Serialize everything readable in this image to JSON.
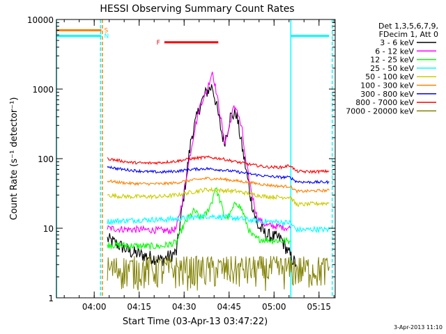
{
  "chart_data": {
    "type": "line",
    "title": "HESSI Observing Summary Count Rates",
    "xlabel": "Start Time (03-Apr-13 03:47:22)",
    "ylabel": "Count Rate (s⁻¹ detector⁻¹)",
    "x_unit": "minutes since 03:47:22",
    "xlim": [
      0,
      93
    ],
    "ylim": [
      1,
      10000
    ],
    "yscale": "log",
    "x_ticks": [
      {
        "label": "04:00",
        "x": 12.6
      },
      {
        "label": "04:15",
        "x": 27.6
      },
      {
        "label": "04:30",
        "x": 42.6
      },
      {
        "label": "04:45",
        "x": 57.6
      },
      {
        "label": "05:00",
        "x": 72.6
      },
      {
        "label": "05:15",
        "x": 87.6
      }
    ],
    "y_ticks": [
      {
        "label": "1",
        "v": 1
      },
      {
        "label": "10",
        "v": 10
      },
      {
        "label": "100",
        "v": 100
      },
      {
        "label": "1000",
        "v": 1000
      },
      {
        "label": "10000",
        "v": 10000
      }
    ],
    "legend_header": [
      "Det 1,3,5,6,7,9,",
      "FDecim 1, Att 0"
    ],
    "legend_position": "right",
    "timestamp": "3-Apr-2013 11:10",
    "series": [
      {
        "name": "3 - 6 keV",
        "color": "#000000",
        "noise": 0.1,
        "x": [
          17,
          20,
          25,
          30,
          35,
          38,
          40,
          42,
          45,
          48,
          50,
          52,
          53,
          55,
          56,
          57,
          58,
          60,
          61,
          63,
          65,
          67,
          70,
          75,
          78,
          80
        ],
        "values": [
          7,
          6,
          4.5,
          4,
          3.5,
          4,
          4.5,
          20,
          200,
          600,
          900,
          1100,
          700,
          250,
          170,
          250,
          400,
          450,
          250,
          80,
          25,
          11,
          8,
          7,
          4,
          3
        ]
      },
      {
        "name": "6 - 12 keV",
        "color": "#ff00ff",
        "noise": 0.05,
        "x": [
          17,
          20,
          25,
          30,
          35,
          38,
          40,
          42,
          44,
          46,
          48,
          50,
          52,
          53,
          55,
          56,
          57,
          59,
          60,
          62,
          63,
          65,
          67,
          70,
          75,
          78
        ],
        "values": [
          10,
          9.8,
          9.6,
          9.5,
          9.3,
          9.2,
          9.8,
          25,
          80,
          250,
          600,
          900,
          1800,
          1100,
          350,
          170,
          220,
          520,
          550,
          250,
          100,
          35,
          14,
          11,
          10.5,
          10
        ]
      },
      {
        "name": "12 - 25 keV",
        "color": "#00ff00",
        "noise": 0.05,
        "x": [
          17,
          20,
          25,
          30,
          35,
          40,
          42,
          44,
          46,
          48,
          50,
          52,
          53,
          55,
          56,
          57,
          58,
          60,
          62,
          64,
          65,
          67,
          70,
          75,
          78
        ],
        "values": [
          5.8,
          5.7,
          5.6,
          5.5,
          5.5,
          6.2,
          10,
          14,
          18,
          14,
          16,
          25,
          40,
          22,
          15,
          14,
          16,
          24,
          18,
          10,
          8,
          7,
          6.8,
          6.6,
          6.5
        ]
      },
      {
        "name": "25 - 50 keV",
        "color": "#00ffff",
        "noise": 0.04,
        "x": [
          17,
          20,
          25,
          30,
          35,
          40,
          45,
          50,
          55,
          60,
          65,
          70,
          75,
          78,
          80,
          83,
          86,
          91
        ],
        "values": [
          12.5,
          12.7,
          13,
          13.3,
          13.3,
          13.6,
          14.2,
          15,
          14.5,
          14,
          13,
          12.5,
          12.2,
          12,
          9.5,
          9.5,
          9.7,
          9.5
        ]
      },
      {
        "name": "50 - 100 keV",
        "color": "#cccc00",
        "noise": 0.03,
        "x": [
          17,
          20,
          25,
          30,
          35,
          40,
          45,
          50,
          55,
          60,
          65,
          70,
          75,
          78,
          80,
          83,
          86,
          91
        ],
        "values": [
          30,
          29,
          28.5,
          28.5,
          28.5,
          30,
          33,
          36,
          35,
          34,
          31,
          28.5,
          28,
          28,
          22,
          22,
          22.5,
          23
        ]
      },
      {
        "name": "100 - 300 keV",
        "color": "#ff8000",
        "noise": 0.02,
        "x": [
          17,
          20,
          25,
          30,
          35,
          40,
          45,
          50,
          55,
          60,
          65,
          70,
          75,
          78,
          80,
          83,
          86,
          91
        ],
        "values": [
          48,
          46,
          44,
          43.5,
          43.5,
          45,
          49,
          52,
          51,
          48,
          45,
          42,
          40,
          40,
          34,
          34,
          34.5,
          35
        ]
      },
      {
        "name": "300 - 800 keV",
        "color": "#0000ff",
        "noise": 0.02,
        "x": [
          17,
          20,
          25,
          30,
          35,
          40,
          45,
          50,
          55,
          60,
          65,
          70,
          75,
          78,
          80,
          83,
          86,
          91
        ],
        "values": [
          78,
          72,
          68,
          65,
          64,
          66,
          70,
          72,
          69,
          65,
          60,
          56,
          54,
          54,
          47,
          46,
          46,
          46
        ]
      },
      {
        "name": "800 - 7000 keV",
        "color": "#ff0000",
        "noise": 0.02,
        "x": [
          17,
          20,
          25,
          30,
          35,
          40,
          45,
          50,
          55,
          60,
          65,
          70,
          75,
          78,
          80,
          83,
          86,
          91
        ],
        "values": [
          100,
          95,
          88,
          86,
          88,
          92,
          100,
          105,
          100,
          90,
          82,
          76,
          75,
          80,
          66,
          65,
          65,
          66
        ]
      },
      {
        "name": "7000 - 20000 keV",
        "color": "#808000",
        "noise": 0,
        "x": [
          17,
          20,
          25,
          30,
          35,
          40,
          45,
          50,
          55,
          60,
          65,
          70,
          75,
          78,
          80,
          83,
          86,
          91
        ],
        "values": [
          2.5,
          2.5,
          2.5,
          2.5,
          2.5,
          2.5,
          2.5,
          2.5,
          2.5,
          2.5,
          2.5,
          2.5,
          2.5,
          2.5,
          2.5,
          2.5,
          2.5,
          2.5
        ]
      }
    ],
    "annotations": [
      {
        "label": "S",
        "color": "#ff8000",
        "x": [
          0,
          15
        ],
        "value": 7000,
        "kind": "segment"
      },
      {
        "label": "N",
        "color": "#00ffff",
        "x": [
          0,
          15
        ],
        "value": 5800,
        "kind": "segment"
      },
      {
        "label": "N",
        "color": "#00ffff",
        "x": [
          78,
          91
        ],
        "value": 5800,
        "kind": "segment-right"
      },
      {
        "label": "F",
        "color": "#ff0000",
        "x": [
          36,
          54
        ],
        "value": 4700,
        "kind": "segment"
      }
    ],
    "vertical_markers": [
      {
        "color": "#00ffff",
        "x": 0,
        "style": "solid"
      },
      {
        "color": "#ff8000",
        "x": 15.3,
        "style": "dashed"
      },
      {
        "color": "#00ffff",
        "x": 14.7,
        "style": "dashed"
      },
      {
        "color": "#00ffff",
        "x": 78.2,
        "style": "solid"
      },
      {
        "color": "#00ffff",
        "x": 92,
        "style": "dashed"
      }
    ]
  }
}
